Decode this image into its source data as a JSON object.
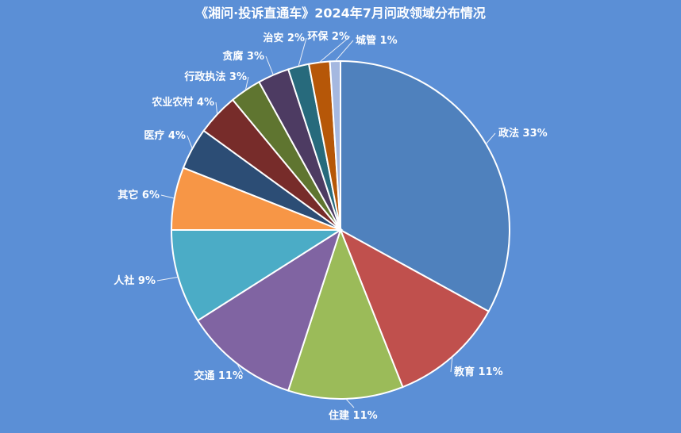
{
  "chart_data": {
    "type": "pie",
    "title": "《湘问·投诉直通车》2024年7月问政领域分布情况",
    "slices": [
      {
        "label": "政法",
        "value": 33,
        "display": "政法 33%",
        "color": "#4f81bd"
      },
      {
        "label": "教育",
        "value": 11,
        "display": "教育 11%",
        "color": "#c0504d"
      },
      {
        "label": "住建",
        "value": 11,
        "display": "住建 11%",
        "color": "#9bbb59"
      },
      {
        "label": "交通",
        "value": 11,
        "display": "交通 11%",
        "color": "#8064a2"
      },
      {
        "label": "人社",
        "value": 9,
        "display": "人社 9%",
        "color": "#4bacc6"
      },
      {
        "label": "其它",
        "value": 6,
        "display": "其它 6%",
        "color": "#f79646"
      },
      {
        "label": "医疗",
        "value": 4,
        "display": "医疗 4%",
        "color": "#2c4d75"
      },
      {
        "label": "农业农村",
        "value": 4,
        "display": "农业农村 4%",
        "color": "#772c2a"
      },
      {
        "label": "行政执法",
        "value": 3,
        "display": "行政执法 3%",
        "color": "#5f7530"
      },
      {
        "label": "贪腐",
        "value": 3,
        "display": "贪腐 3%",
        "color": "#4d3b62"
      },
      {
        "label": "治安",
        "value": 2,
        "display": "治安 2%",
        "color": "#276a7c"
      },
      {
        "label": "环保",
        "value": 2,
        "display": "环保 2%",
        "color": "#b65708"
      },
      {
        "label": "城管",
        "value": 1,
        "display": "城管 1%",
        "color": "#a5b8e0"
      }
    ],
    "legend": "none"
  }
}
